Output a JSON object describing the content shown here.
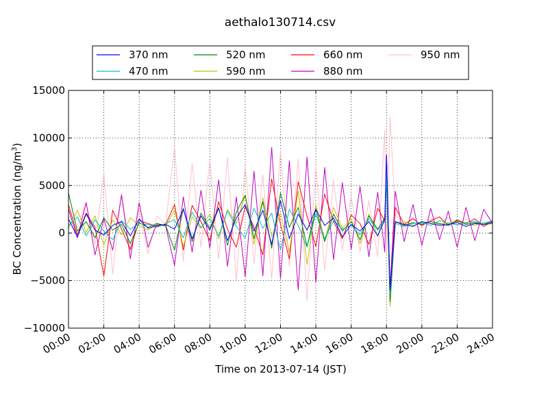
{
  "chart_data": {
    "type": "line",
    "title": "aethalo130714.csv",
    "xlabel": "Time on 2013-07-14 (JST)",
    "ylabel_main": "BC Concentration (ng/m",
    "ylabel_sup": "3",
    "ylabel_end": ")",
    "xlim": [
      0,
      24
    ],
    "ylim": [
      -10000,
      15000
    ],
    "grid": true,
    "legend_position": "top-center",
    "x_ticks": [
      {
        "value": 0,
        "label": "00:00"
      },
      {
        "value": 2,
        "label": "02:00"
      },
      {
        "value": 4,
        "label": "04:00"
      },
      {
        "value": 6,
        "label": "06:00"
      },
      {
        "value": 8,
        "label": "08:00"
      },
      {
        "value": 10,
        "label": "10:00"
      },
      {
        "value": 12,
        "label": "12:00"
      },
      {
        "value": 14,
        "label": "14:00"
      },
      {
        "value": 16,
        "label": "16:00"
      },
      {
        "value": 18,
        "label": "18:00"
      },
      {
        "value": 20,
        "label": "20:00"
      },
      {
        "value": 22,
        "label": "22:00"
      },
      {
        "value": 24,
        "label": "24:00"
      }
    ],
    "y_ticks": [
      {
        "value": 15000,
        "label": "15000"
      },
      {
        "value": 10000,
        "label": "10000"
      },
      {
        "value": 5000,
        "label": "5000"
      },
      {
        "value": 0,
        "label": "0"
      },
      {
        "value": -5000,
        "label": "−5000"
      },
      {
        "value": -10000,
        "label": "−10000"
      }
    ],
    "series": [
      {
        "name": "370 nm",
        "color": "#0000ff",
        "x": [
          0.0,
          0.5,
          1.0,
          1.5,
          2.0,
          2.5,
          3.0,
          3.5,
          4.0,
          4.5,
          5.0,
          5.5,
          6.0,
          6.5,
          7.0,
          7.5,
          8.0,
          8.5,
          9.0,
          9.5,
          10.0,
          10.5,
          11.0,
          11.5,
          12.0,
          12.5,
          13.0,
          13.5,
          14.0,
          14.5,
          15.0,
          15.5,
          16.0,
          16.5,
          17.0,
          17.5,
          17.9,
          18.0,
          18.2,
          18.5,
          19.0,
          19.5,
          20.0,
          20.5,
          21.0,
          21.5,
          22.0,
          22.5,
          23.0,
          23.5,
          24.0
        ],
        "y": [
          1500,
          -400,
          2000,
          300,
          -200,
          800,
          1200,
          -300,
          1500,
          500,
          800,
          900,
          400,
          2500,
          -600,
          1800,
          300,
          2600,
          -800,
          1600,
          3000,
          200,
          2400,
          -1200,
          3400,
          -600,
          2000,
          300,
          2500,
          800,
          1600,
          -400,
          900,
          200,
          1200,
          -300,
          1500,
          8200,
          -6000,
          1200,
          900,
          700,
          1200,
          1000,
          800,
          900,
          1100,
          700,
          1000,
          900,
          1200
        ]
      },
      {
        "name": "470 nm",
        "color": "#00bfbf",
        "x": [
          0.0,
          0.5,
          1.0,
          1.5,
          2.0,
          2.5,
          3.0,
          3.5,
          4.0,
          4.5,
          5.0,
          5.5,
          6.0,
          6.5,
          7.0,
          7.5,
          8.0,
          8.5,
          9.0,
          9.5,
          10.0,
          10.5,
          11.0,
          11.5,
          12.0,
          12.5,
          13.0,
          13.5,
          14.0,
          14.5,
          15.0,
          15.5,
          16.0,
          16.5,
          17.0,
          17.5,
          17.9,
          18.0,
          18.2,
          18.5,
          19.0,
          19.5,
          20.0,
          20.5,
          21.0,
          21.5,
          22.0,
          22.5,
          23.0,
          23.5,
          24.0
        ],
        "y": [
          800,
          1700,
          -300,
          1400,
          200,
          -700,
          1300,
          400,
          1000,
          900,
          600,
          1000,
          1400,
          -500,
          2200,
          600,
          1500,
          -300,
          2300,
          700,
          -500,
          2600,
          500,
          2100,
          -1800,
          2500,
          800,
          -1500,
          2000,
          -600,
          1300,
          400,
          800,
          -200,
          1500,
          300,
          1200,
          6500,
          -6500,
          1000,
          700,
          1000,
          1100,
          800,
          1300,
          1000,
          900,
          1100,
          1200,
          1000,
          1300
        ]
      },
      {
        "name": "520 nm",
        "color": "#008000",
        "x": [
          0.0,
          0.5,
          1.0,
          1.5,
          2.0,
          2.5,
          3.0,
          3.5,
          4.0,
          4.5,
          5.0,
          5.5,
          6.0,
          6.5,
          7.0,
          7.5,
          8.0,
          8.5,
          9.0,
          9.5,
          10.0,
          10.5,
          11.0,
          11.5,
          12.0,
          12.5,
          13.0,
          13.5,
          14.0,
          14.5,
          15.0,
          15.5,
          16.0,
          16.5,
          17.0,
          17.5,
          17.9,
          18.0,
          18.2,
          18.5,
          19.0,
          19.5,
          20.0,
          20.5,
          21.0,
          21.5,
          22.0,
          22.5,
          23.0,
          23.5,
          24.0
        ],
        "y": [
          4200,
          200,
          1200,
          -500,
          1600,
          300,
          900,
          -1100,
          1100,
          600,
          1000,
          800,
          -1800,
          2600,
          -900,
          2100,
          500,
          2700,
          -1300,
          2200,
          4000,
          -600,
          3300,
          -1600,
          4200,
          600,
          2700,
          -1400,
          2500,
          -900,
          2000,
          200,
          1200,
          -700,
          1800,
          400,
          1600,
          5500,
          -7200,
          1200,
          800,
          1100,
          900,
          1200,
          1000,
          800,
          1300,
          900,
          1100,
          900,
          1000
        ]
      },
      {
        "name": "590 nm",
        "color": "#bfbf00",
        "x": [
          0.0,
          0.5,
          1.0,
          1.5,
          2.0,
          2.5,
          3.0,
          3.5,
          4.0,
          4.5,
          5.0,
          5.5,
          6.0,
          6.5,
          7.0,
          7.5,
          8.0,
          8.5,
          9.0,
          9.5,
          10.0,
          10.5,
          11.0,
          11.5,
          12.0,
          12.5,
          13.0,
          13.5,
          14.0,
          14.5,
          15.0,
          15.5,
          16.0,
          16.5,
          17.0,
          17.5,
          17.9,
          18.0,
          18.2,
          18.5,
          19.0,
          19.5,
          20.0,
          20.5,
          21.0,
          21.5,
          22.0,
          22.5,
          23.0,
          23.5,
          24.0
        ],
        "y": [
          500,
          2400,
          100,
          1800,
          -1300,
          1400,
          -200,
          1600,
          800,
          300,
          900,
          700,
          2400,
          -1400,
          1700,
          500,
          2000,
          -600,
          2500,
          1000,
          4000,
          -1200,
          3700,
          -400,
          2100,
          -2000,
          4400,
          -3300,
          3000,
          -700,
          2700,
          500,
          1500,
          -1100,
          2000,
          -300,
          1400,
          6000,
          -7700,
          1000,
          1200,
          800,
          1000,
          1200,
          900,
          1100,
          1200,
          1000,
          800,
          1100,
          1000
        ]
      },
      {
        "name": "660 nm",
        "color": "#ff0000",
        "x": [
          0.0,
          0.5,
          1.0,
          1.5,
          2.0,
          2.5,
          3.0,
          3.5,
          4.0,
          4.5,
          5.0,
          5.5,
          6.0,
          6.5,
          7.0,
          7.5,
          8.0,
          8.5,
          9.0,
          9.5,
          10.0,
          10.5,
          11.0,
          11.5,
          12.0,
          12.5,
          13.0,
          13.5,
          14.0,
          14.5,
          15.0,
          15.5,
          16.0,
          16.5,
          17.0,
          17.5,
          17.9,
          18.0,
          18.2,
          18.5,
          19.0,
          19.5,
          20.0,
          20.5,
          21.0,
          21.5,
          22.0,
          22.5,
          23.0,
          23.5,
          24.0
        ],
        "y": [
          3000,
          -200,
          2100,
          600,
          -4500,
          2400,
          400,
          -1700,
          1300,
          1000,
          700,
          900,
          3000,
          -1800,
          2900,
          1200,
          -800,
          3300,
          400,
          -1500,
          2800,
          600,
          -2300,
          5700,
          900,
          -2700,
          5400,
          1800,
          -1400,
          4100,
          1200,
          -600,
          1900,
          1000,
          -1200,
          2600,
          1300,
          7300,
          -6800,
          2700,
          900,
          1500,
          800,
          1300,
          1700,
          800,
          1400,
          1000,
          1500,
          700,
          1200
        ]
      },
      {
        "name": "880 nm",
        "color": "#bf00bf",
        "x": [
          0.0,
          0.5,
          1.0,
          1.5,
          2.0,
          2.5,
          3.0,
          3.5,
          4.0,
          4.5,
          5.0,
          5.5,
          6.0,
          6.5,
          7.0,
          7.5,
          8.0,
          8.5,
          9.0,
          9.5,
          10.0,
          10.5,
          11.0,
          11.5,
          12.0,
          12.5,
          13.0,
          13.5,
          14.0,
          14.5,
          15.0,
          15.5,
          16.0,
          16.5,
          17.0,
          17.5,
          17.9,
          18.0,
          18.2,
          18.5,
          19.0,
          19.5,
          20.0,
          20.5,
          21.0,
          21.5,
          22.0,
          22.5,
          23.0,
          23.5,
          24.0
        ],
        "y": [
          2500,
          -500,
          3200,
          -2300,
          1500,
          -1800,
          4000,
          -2700,
          3200,
          -1500,
          1000,
          700,
          -3400,
          3800,
          -2000,
          4500,
          -1600,
          5600,
          -3500,
          3800,
          -4600,
          6500,
          -4500,
          9000,
          -4800,
          7600,
          -6000,
          8000,
          -5200,
          6900,
          -2800,
          5300,
          -1700,
          4900,
          -2500,
          4300,
          -2000,
          8200,
          -5800,
          4400,
          -900,
          3000,
          -1300,
          2600,
          -700,
          2300,
          -1500,
          2700,
          -800,
          2500,
          1000
        ]
      },
      {
        "name": "950 nm",
        "color": "#ffc0cb",
        "x": [
          0.0,
          0.5,
          1.0,
          1.5,
          2.0,
          2.5,
          3.0,
          3.5,
          4.0,
          4.5,
          5.0,
          5.5,
          6.0,
          6.5,
          7.0,
          7.5,
          8.0,
          8.5,
          9.0,
          9.5,
          10.0,
          10.5,
          11.0,
          11.5,
          12.0,
          12.5,
          13.0,
          13.5,
          14.0,
          14.5,
          15.0,
          15.5,
          16.0,
          16.5,
          17.0,
          17.5,
          17.9,
          18.0,
          18.2,
          18.5,
          19.0,
          19.5,
          20.0,
          20.5,
          21.0,
          21.5,
          22.0,
          22.5,
          23.0,
          23.5,
          24.0
        ],
        "y": [
          1800,
          600,
          3200,
          -1200,
          6300,
          -4300,
          4200,
          -2000,
          2600,
          -2200,
          1800,
          900,
          9100,
          -3000,
          7300,
          -1500,
          7700,
          -2700,
          8000,
          -5100,
          7100,
          -3200,
          6100,
          -4800,
          8700,
          -3500,
          7800,
          -7100,
          7000,
          -3900,
          5600,
          -1800,
          3900,
          -2000,
          3400,
          -2500,
          10800,
          -2400,
          12200,
          2000,
          400,
          1700,
          600,
          1600,
          400,
          1700,
          700,
          1500,
          800,
          1400,
          900
        ]
      }
    ]
  }
}
